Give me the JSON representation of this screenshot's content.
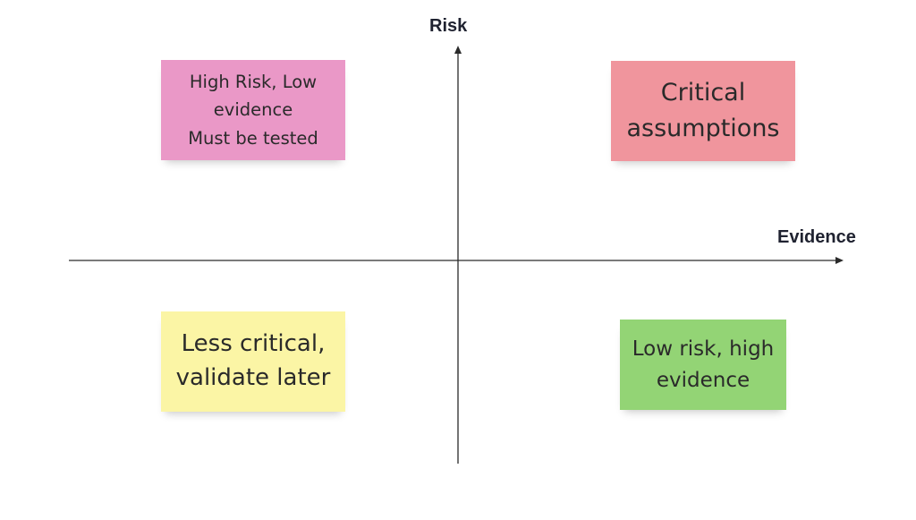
{
  "axes": {
    "vertical_label": "Risk",
    "horizontal_label": "Evidence"
  },
  "notes": {
    "top_left": {
      "lines": [
        "High Risk, Low",
        "evidence",
        "Must be tested"
      ],
      "color": "#ea98c7"
    },
    "top_right": {
      "lines": [
        "Critical",
        "assumptions"
      ],
      "color": "#f0959d"
    },
    "bottom_left": {
      "lines": [
        "Less critical,",
        "validate later"
      ],
      "color": "#fbf5a5"
    },
    "bottom_right": {
      "lines": [
        "Low risk, high",
        "evidence"
      ],
      "color": "#93d475"
    }
  }
}
